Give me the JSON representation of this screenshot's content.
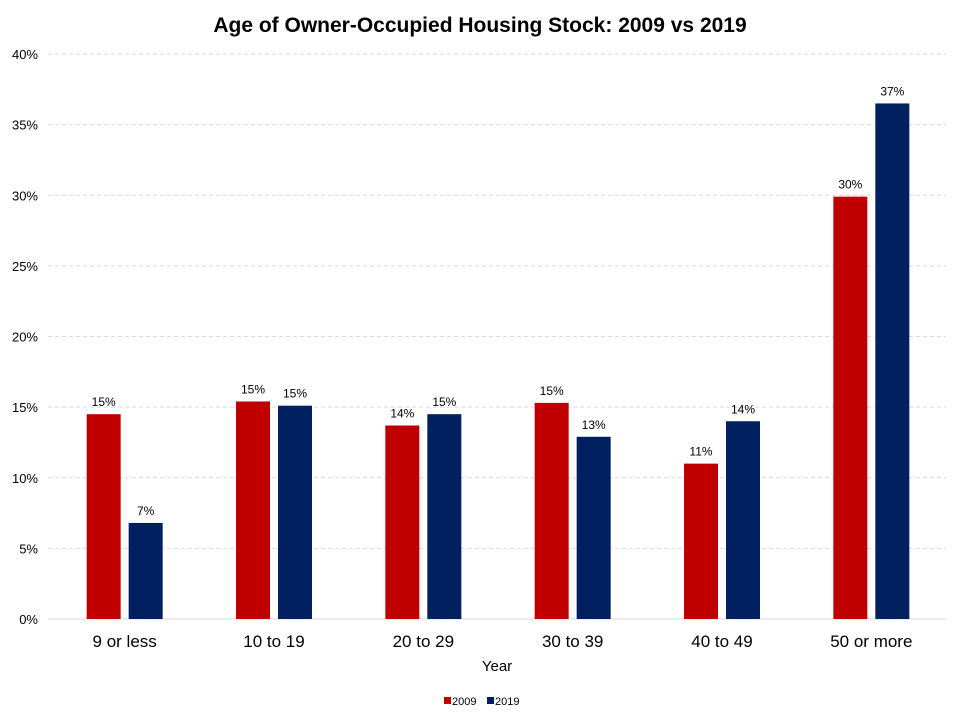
{
  "chart_data": {
    "type": "bar",
    "title": "Age of Owner-Occupied Housing Stock: 2009 vs 2019",
    "xlabel": "Year",
    "ylabel": "",
    "categories": [
      "9 or less",
      "10 to 19",
      "20 to 29",
      "30 to 39",
      "40 to 49",
      "50 or more"
    ],
    "series": [
      {
        "name": "2009",
        "color": "#C00000",
        "values": [
          14.5,
          15.4,
          13.7,
          15.3,
          11.0,
          29.9
        ],
        "labels": [
          "15%",
          "15%",
          "14%",
          "15%",
          "11%",
          "30%"
        ]
      },
      {
        "name": "2019",
        "color": "#002060",
        "values": [
          6.8,
          15.1,
          14.5,
          12.9,
          14.0,
          36.5
        ],
        "labels": [
          "7%",
          "15%",
          "15%",
          "13%",
          "14%",
          "37%"
        ]
      }
    ],
    "ylim": [
      0,
      40
    ],
    "yticks": [
      0,
      5,
      10,
      15,
      20,
      25,
      30,
      35,
      40
    ],
    "ytick_labels": [
      "0%",
      "5%",
      "10%",
      "15%",
      "20%",
      "25%",
      "30%",
      "35%",
      "40%"
    ],
    "grid": true,
    "legend_position": "bottom"
  }
}
